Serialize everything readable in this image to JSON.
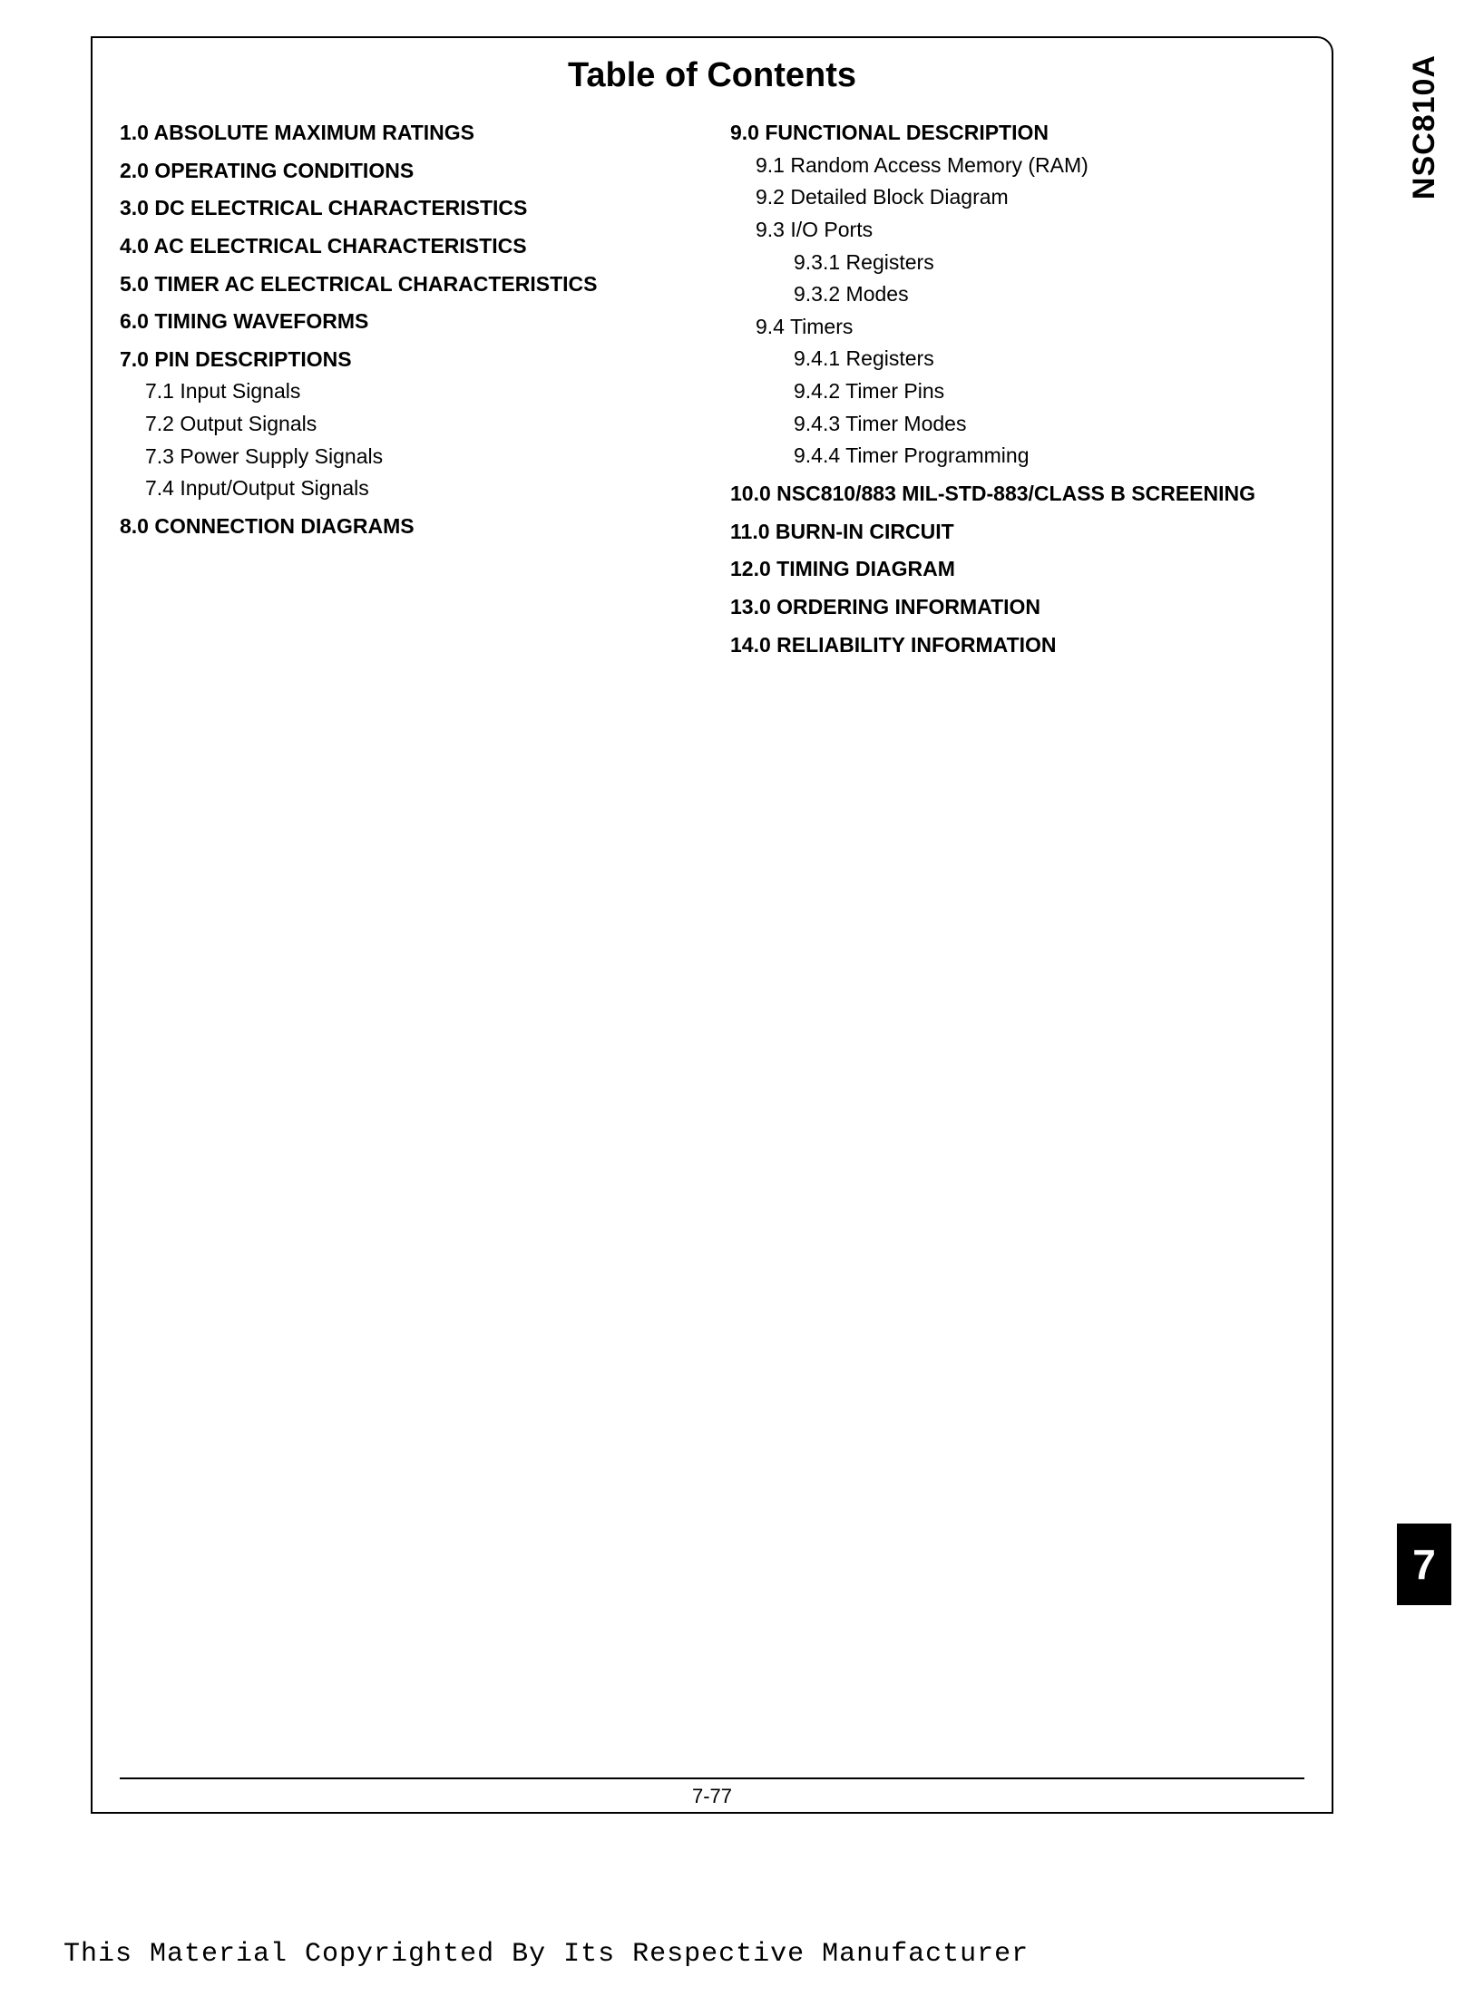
{
  "side_label": "NSC810A",
  "side_tab": "7",
  "title": "Table of Contents",
  "page_number": "7-77",
  "copyright": "This Material Copyrighted By Its Respective Manufacturer",
  "left": {
    "s1": "1.0 ABSOLUTE MAXIMUM RATINGS",
    "s2": "2.0 OPERATING CONDITIONS",
    "s3": "3.0 DC ELECTRICAL CHARACTERISTICS",
    "s4": "4.0 AC ELECTRICAL CHARACTERISTICS",
    "s5": "5.0 TIMER AC ELECTRICAL CHARACTERISTICS",
    "s6": "6.0 TIMING WAVEFORMS",
    "s7": "7.0 PIN DESCRIPTIONS",
    "s7_1": "7.1 Input Signals",
    "s7_2": "7.2 Output Signals",
    "s7_3": "7.3 Power Supply Signals",
    "s7_4": "7.4 Input/Output Signals",
    "s8": "8.0 CONNECTION DIAGRAMS"
  },
  "right": {
    "s9": "9.0 FUNCTIONAL DESCRIPTION",
    "s9_1": "9.1 Random Access Memory (RAM)",
    "s9_2": "9.2 Detailed Block Diagram",
    "s9_3": "9.3 I/O Ports",
    "s9_3_1": "9.3.1 Registers",
    "s9_3_2": "9.3.2 Modes",
    "s9_4": "9.4 Timers",
    "s9_4_1": "9.4.1 Registers",
    "s9_4_2": "9.4.2 Timer Pins",
    "s9_4_3": "9.4.3 Timer Modes",
    "s9_4_4": "9.4.4 Timer Programming",
    "s10": "10.0 NSC810/883 MIL-STD-883/CLASS B SCREENING",
    "s11": "11.0 BURN-IN CIRCUIT",
    "s12": "12.0 TIMING DIAGRAM",
    "s13": "13.0 ORDERING INFORMATION",
    "s14": "14.0 RELIABILITY INFORMATION"
  }
}
